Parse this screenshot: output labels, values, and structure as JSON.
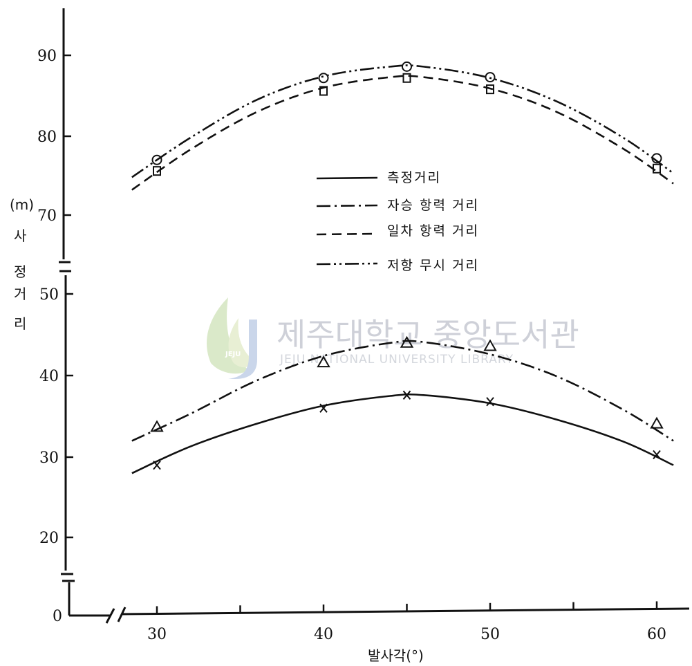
{
  "chart_data": {
    "type": "line",
    "xlabel": "발사각(°)",
    "ylabel_unit": "(m)",
    "ylabel": [
      "사",
      "정",
      "거",
      "리"
    ],
    "x_ticks": [
      30,
      40,
      50,
      60
    ],
    "y_ticks": [
      0,
      20,
      30,
      40,
      50,
      70,
      80,
      90
    ],
    "x_axis_broken": true,
    "y_axis_broken": true,
    "grid": false,
    "legend_position": "right-middle",
    "series": [
      {
        "name": "측정거리",
        "style": "solid",
        "marker": "x",
        "x": [
          30,
          40,
          45,
          50,
          60
        ],
        "y": [
          29.0,
          36.0,
          37.6,
          36.8,
          30.3
        ],
        "curve": [
          [
            28.5,
            28.0
          ],
          [
            32,
            31.3
          ],
          [
            36,
            34.1
          ],
          [
            40,
            36.3
          ],
          [
            44,
            37.5
          ],
          [
            46,
            37.6
          ],
          [
            50,
            36.6
          ],
          [
            54,
            34.6
          ],
          [
            58,
            31.9
          ],
          [
            61,
            29.0
          ]
        ]
      },
      {
        "name": "자승 항력 거리",
        "style": "dashdot",
        "marker": "triangle",
        "x": [
          30,
          40,
          45,
          50,
          60
        ],
        "y": [
          33.7,
          41.6,
          44.0,
          43.6,
          34.1
        ],
        "curve": [
          [
            28.5,
            32.0
          ],
          [
            32,
            35.3
          ],
          [
            36,
            39.4
          ],
          [
            40,
            42.4
          ],
          [
            44,
            44.0
          ],
          [
            46,
            44.1
          ],
          [
            50,
            42.6
          ],
          [
            54,
            39.9
          ],
          [
            58,
            35.8
          ],
          [
            61,
            32.0
          ]
        ]
      },
      {
        "name": "일차 항력 거리",
        "style": "dashed",
        "marker": "square",
        "x": [
          30,
          40,
          45,
          50,
          60
        ],
        "y": [
          75.6,
          85.6,
          87.2,
          85.8,
          75.9
        ],
        "curve": [
          [
            28.5,
            73.2
          ],
          [
            32,
            78.3
          ],
          [
            36,
            83.0
          ],
          [
            40,
            86.0
          ],
          [
            44,
            87.3
          ],
          [
            46,
            87.3
          ],
          [
            50,
            85.9
          ],
          [
            54,
            83.0
          ],
          [
            58,
            78.4
          ],
          [
            61,
            74.0
          ]
        ]
      },
      {
        "name": "저항 무시 거리",
        "style": "dashdotdot",
        "marker": "circle",
        "x": [
          30,
          40,
          45,
          50,
          60
        ],
        "y": [
          77.0,
          87.2,
          88.6,
          87.3,
          77.2
        ],
        "curve": [
          [
            28.5,
            74.8
          ],
          [
            32,
            79.8
          ],
          [
            36,
            84.5
          ],
          [
            40,
            87.4
          ],
          [
            44,
            88.6
          ],
          [
            46,
            88.6
          ],
          [
            50,
            87.2
          ],
          [
            54,
            84.3
          ],
          [
            58,
            79.8
          ],
          [
            61,
            75.3
          ]
        ]
      }
    ]
  },
  "watermark": {
    "title": "제주대학교 중앙도서관",
    "subtitle": "JEJU NATIONAL UNIVERSITY LIBRARY",
    "logo_text": "JEJU"
  }
}
